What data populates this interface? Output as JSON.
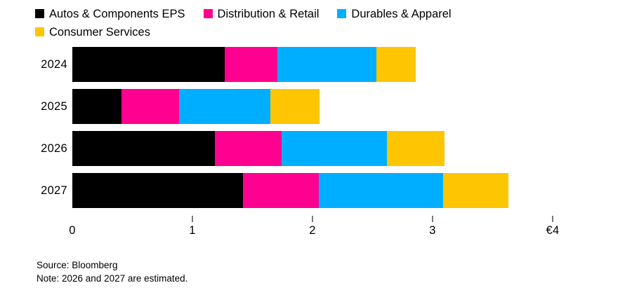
{
  "chart_data": {
    "type": "bar",
    "orientation": "horizontal",
    "stacked": true,
    "title": "",
    "xlabel": "",
    "ylabel": "",
    "categories": [
      "2024",
      "2025",
      "2026",
      "2027"
    ],
    "series": [
      {
        "name": "Autos & Components EPS",
        "color": "#000000",
        "values": [
          1.27,
          0.41,
          1.19,
          1.42
        ]
      },
      {
        "name": "Distribution & Retail",
        "color": "#ff0090",
        "values": [
          0.44,
          0.48,
          0.55,
          0.63
        ]
      },
      {
        "name": "Durables & Apparel",
        "color": "#00aeff",
        "values": [
          0.82,
          0.76,
          0.88,
          1.04
        ]
      },
      {
        "name": "Consumer Services",
        "color": "#fdc502",
        "values": [
          0.33,
          0.41,
          0.48,
          0.54
        ]
      }
    ],
    "xlim": [
      0,
      4
    ],
    "x_ticks": [
      {
        "value": 0,
        "label": "0"
      },
      {
        "value": 1,
        "label": "1"
      },
      {
        "value": 2,
        "label": "2"
      },
      {
        "value": 3,
        "label": "3"
      },
      {
        "value": 4,
        "label": "€4"
      }
    ],
    "legend_position": "top",
    "grid": false,
    "background": "#ffffff",
    "tick_color": "#7a7a7a"
  },
  "footer": {
    "source": "Source: Bloomberg",
    "note": "Note: 2026 and 2027 are estimated."
  }
}
